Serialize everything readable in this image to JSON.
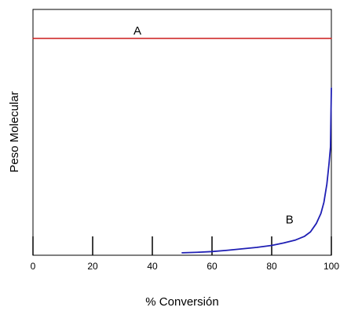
{
  "chart_data": {
    "type": "line",
    "title": "",
    "xlabel": "% Conversión",
    "ylabel": "Peso Molecular",
    "xlim": [
      0,
      100
    ],
    "ylim": [
      0,
      1
    ],
    "xticks": [
      0,
      20,
      40,
      60,
      80,
      100
    ],
    "yticks": [],
    "grid": false,
    "legend": "none",
    "series": [
      {
        "name": "A",
        "color": "#cc1a1a",
        "x": [
          0,
          100
        ],
        "y": [
          0.882,
          0.882
        ]
      },
      {
        "name": "B",
        "color": "#1f1fb4",
        "x": [
          50,
          55,
          60,
          65,
          70,
          75,
          80,
          84,
          88,
          91,
          93,
          95,
          96.5,
          97.5,
          98.5,
          99.2,
          99.7,
          100
        ],
        "y": [
          0.01,
          0.012,
          0.015,
          0.02,
          0.026,
          0.032,
          0.04,
          0.05,
          0.062,
          0.077,
          0.095,
          0.13,
          0.17,
          0.215,
          0.29,
          0.37,
          0.44,
          0.68
        ]
      }
    ]
  }
}
